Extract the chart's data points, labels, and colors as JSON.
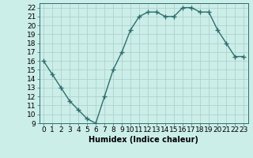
{
  "x": [
    0,
    1,
    2,
    3,
    4,
    5,
    6,
    7,
    8,
    9,
    10,
    11,
    12,
    13,
    14,
    15,
    16,
    17,
    18,
    19,
    20,
    21,
    22,
    23
  ],
  "y": [
    16,
    14.5,
    13,
    11.5,
    10.5,
    9.5,
    9,
    12,
    15,
    17,
    19.5,
    21,
    21.5,
    21.5,
    21,
    21,
    22,
    22,
    21.5,
    21.5,
    19.5,
    18,
    16.5,
    16.5
  ],
  "line_color": "#2e6e6e",
  "marker": "+",
  "markersize": 4,
  "linewidth": 1.0,
  "markeredgewidth": 1.0,
  "xlabel": "Humidex (Indice chaleur)",
  "ylabel": "",
  "xlim": [
    -0.5,
    23.5
  ],
  "ylim": [
    9,
    22.5
  ],
  "yticks": [
    9,
    10,
    11,
    12,
    13,
    14,
    15,
    16,
    17,
    18,
    19,
    20,
    21,
    22
  ],
  "xticks": [
    0,
    1,
    2,
    3,
    4,
    5,
    6,
    7,
    8,
    9,
    10,
    11,
    12,
    13,
    14,
    15,
    16,
    17,
    18,
    19,
    20,
    21,
    22,
    23
  ],
  "background_color": "#cceee8",
  "grid_color": "#aacccc",
  "label_fontsize": 7,
  "tick_fontsize": 6.5
}
